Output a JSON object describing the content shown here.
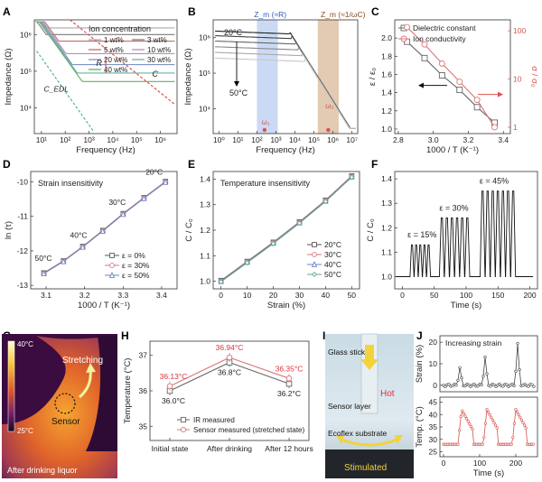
{
  "chart_data": [
    {
      "panel": "A",
      "type": "line",
      "xlabel": "Frequency (Hz)",
      "ylabel": "Impedance (Ω)",
      "xscale": "log",
      "yscale": "log",
      "xticks": [
        "10¹",
        "10²",
        "10³",
        "10⁴",
        "10⁵",
        "10⁶"
      ],
      "yticks": [
        "10⁴",
        "10⁵",
        "10⁶"
      ],
      "legend_title": "Ion concentration",
      "legend": [
        "1 wt%",
        "3 wt%",
        "5 wt%",
        "10 wt%",
        "20 wt%",
        "30 wt%",
        "40 wt%"
      ],
      "annotations": [
        "R",
        "C",
        "C_EDL"
      ],
      "colors": [
        "#aaaaaa",
        "#7a7a7a",
        "#c46b6b",
        "#b58fb7",
        "#7f93c6",
        "#69b2a6",
        "#6aaa6a"
      ]
    },
    {
      "panel": "B",
      "type": "line",
      "xlabel": "Frequency (Hz)",
      "ylabel": "Impedance (Ω)",
      "xscale": "log",
      "yscale": "log",
      "xticks": [
        "10⁰",
        "10¹",
        "10²",
        "10³",
        "10⁴",
        "10⁵",
        "10⁶",
        "10⁷"
      ],
      "yticks": [
        "10⁴",
        "10⁵",
        "10⁶"
      ],
      "annotations": [
        "20°C",
        "50°C",
        "Z_m (≈R)",
        "Z_m (≈1/ωC)",
        "ω₁",
        "ω₂"
      ],
      "colors": [
        "#4b79c9",
        "#b5835a"
      ]
    },
    {
      "panel": "C",
      "type": "line",
      "xlabel": "1000 / T (K⁻¹)",
      "ylabel": "ε / ε₀",
      "y2label": "σ / σ₀",
      "xlim": [
        2.8,
        3.4
      ],
      "xticks": [
        "2.8",
        "3.0",
        "3.2",
        "3.4"
      ],
      "ylim": [
        1.0,
        2.1
      ],
      "yticks": [
        "1.0",
        "1.2",
        "1.4",
        "1.6",
        "1.8",
        "2.0"
      ],
      "y2ticks": [
        "1",
        "10",
        "100"
      ],
      "x": [
        2.85,
        2.95,
        3.05,
        3.15,
        3.25,
        3.35
      ],
      "series": [
        {
          "name": "Dielectric constant",
          "color": "#666666",
          "values": [
            1.96,
            1.78,
            1.59,
            1.43,
            1.24,
            1.07
          ]
        },
        {
          "name": "Ion conductivity",
          "color": "#d9767b",
          "values": [
            2.12,
            1.93,
            1.72,
            1.52,
            1.32,
            1.02
          ]
        }
      ]
    },
    {
      "panel": "D",
      "type": "line",
      "title": "Strain insensitivity",
      "xlabel": "1000 / T (K⁻¹)",
      "ylabel": "ln (τ)",
      "xlim": [
        3.1,
        3.4
      ],
      "xticks": [
        "3.1",
        "3.2",
        "3.3",
        "3.4"
      ],
      "ylim": [
        -13,
        -10
      ],
      "yticks": [
        "-13",
        "-12",
        "-11",
        "-10"
      ],
      "x": [
        3.094,
        3.145,
        3.195,
        3.247,
        3.3,
        3.354,
        3.41
      ],
      "point_labels": {
        "3.094": "50°C",
        "3.195": "40°C",
        "3.30": "30°C",
        "3.41": "20°C"
      },
      "series": [
        {
          "name": "ε = 0%",
          "color": "#555555",
          "values": [
            -12.65,
            -12.3,
            -11.88,
            -11.42,
            -10.93,
            -10.47,
            -10.0
          ]
        },
        {
          "name": "ε = 30%",
          "color": "#d9767b",
          "values": [
            -12.65,
            -12.3,
            -11.88,
            -11.42,
            -10.93,
            -10.47,
            -10.0
          ]
        },
        {
          "name": "ε = 50%",
          "color": "#6a83c9",
          "values": [
            -12.65,
            -12.3,
            -11.88,
            -11.42,
            -10.93,
            -10.47,
            -10.0
          ]
        }
      ]
    },
    {
      "panel": "E",
      "type": "line",
      "title": "Temperature insensitivity",
      "xlabel": "Strain (%)",
      "ylabel": "C / C₀",
      "xlim": [
        0,
        50
      ],
      "xticks": [
        "0",
        "10",
        "20",
        "30",
        "40",
        "50"
      ],
      "ylim": [
        1.0,
        1.4
      ],
      "yticks": [
        "1.0",
        "1.1",
        "1.2",
        "1.3",
        "1.4"
      ],
      "x": [
        0,
        10,
        20,
        30,
        40,
        50
      ],
      "series": [
        {
          "name": "20°C",
          "color": "#555555",
          "values": [
            1.0,
            1.075,
            1.15,
            1.23,
            1.315,
            1.41
          ]
        },
        {
          "name": "30°C",
          "color": "#d9767b",
          "values": [
            1.0,
            1.075,
            1.15,
            1.23,
            1.315,
            1.41
          ]
        },
        {
          "name": "40°C",
          "color": "#6a83c9",
          "values": [
            1.0,
            1.075,
            1.15,
            1.23,
            1.315,
            1.41
          ]
        },
        {
          "name": "50°C",
          "color": "#61a88f",
          "values": [
            1.0,
            1.075,
            1.15,
            1.23,
            1.315,
            1.41
          ]
        }
      ]
    },
    {
      "panel": "F",
      "type": "line",
      "xlabel": "Time (s)",
      "ylabel": "C / C₀",
      "xlim": [
        0,
        200
      ],
      "xticks": [
        "0",
        "50",
        "100",
        "150",
        "200"
      ],
      "ylim": [
        1.0,
        1.4
      ],
      "yticks": [
        "1.0",
        "1.1",
        "1.2",
        "1.3",
        "1.4"
      ],
      "annotations": [
        "ε = 15%",
        "ε = 30%",
        "ε = 45%"
      ],
      "segments": [
        {
          "label": "ε = 15%",
          "peak": 1.13,
          "start": 12,
          "cycles": 5,
          "period": 6.5
        },
        {
          "label": "ε = 30%",
          "peak": 1.24,
          "start": 58,
          "cycles": 6,
          "period": 8
        },
        {
          "label": "ε = 45%",
          "peak": 1.35,
          "start": 122,
          "cycles": 7,
          "period": 8
        }
      ]
    },
    {
      "panel": "H",
      "type": "line",
      "xlabel": "",
      "ylabel": "Temperature (°C)",
      "categories": [
        "Initial state",
        "After drinking",
        "After 12 hours"
      ],
      "ylim": [
        35,
        37
      ],
      "yticks": [
        "35",
        "36",
        "37"
      ],
      "series": [
        {
          "name": "IR measured",
          "color": "#666666",
          "values": [
            36.0,
            36.8,
            36.2
          ],
          "labels": [
            "36.0°C",
            "36.8°C",
            "36.2°C"
          ]
        },
        {
          "name": "Sensor measured (stretched state)",
          "color": "#d9767b",
          "values": [
            36.13,
            36.94,
            36.35
          ],
          "labels": [
            "36.13°C",
            "36.94°C",
            "36.35°C"
          ]
        }
      ]
    },
    {
      "panel": "J",
      "type": "line",
      "xlabel": "Time (s)",
      "ylabel_top": "Strain (%)",
      "ylabel_bottom": "Temp. (°C)",
      "xlim": [
        0,
        250
      ],
      "xticks": [
        "0",
        "100",
        "200"
      ],
      "top_ylim": [
        0,
        20
      ],
      "top_yticks": [
        "0",
        "10",
        "20"
      ],
      "bottom_ylim": [
        25,
        45
      ],
      "bottom_yticks": [
        "25",
        "30",
        "35",
        "40",
        "45"
      ],
      "annotation": "Increasing strain",
      "strain_peaks": [
        {
          "t": 45,
          "v": 8
        },
        {
          "t": 115,
          "v": 13
        },
        {
          "t": 205,
          "v": 19
        }
      ],
      "temp_pulses": [
        {
          "t0": 40,
          "t1": 80
        },
        {
          "t0": 110,
          "t1": 150
        },
        {
          "t0": 190,
          "t1": 230
        }
      ],
      "temp_base": 28,
      "temp_peak": 42,
      "colors": [
        "#444444",
        "#d9534f"
      ]
    }
  ],
  "panels": {
    "labels": [
      "A",
      "B",
      "C",
      "D",
      "E",
      "F",
      "G",
      "H",
      "I",
      "J"
    ],
    "g": {
      "scale_top": "40°C",
      "scale_bottom": "25°C",
      "stretching": "Stretching",
      "sensor": "Sensor",
      "caption": "After drinking liquor"
    },
    "i": {
      "glass_stick": "Glass stick",
      "hot": "Hot",
      "sensor_layer": "Sensor layer",
      "ecoflex": "Ecoflex substrate",
      "caption": "Stimulated"
    }
  }
}
